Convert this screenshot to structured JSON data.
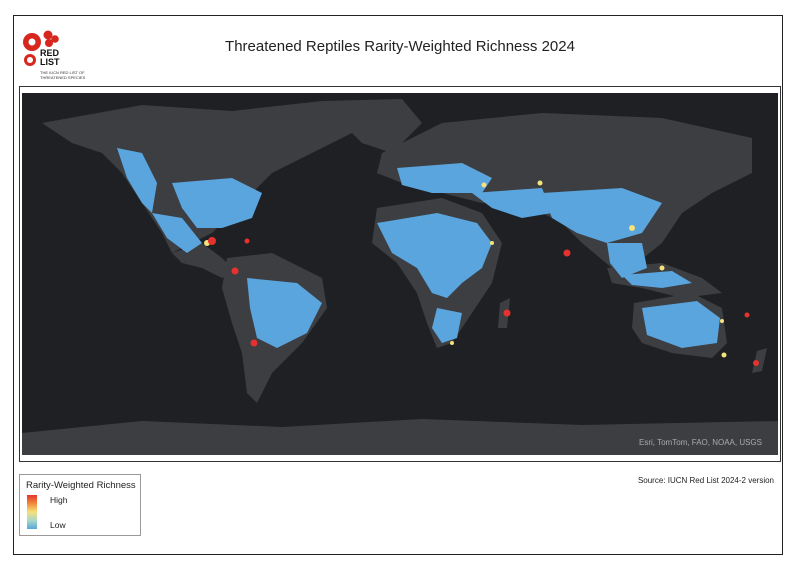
{
  "title": "Threatened Reptiles Rarity-Weighted Richness 2024",
  "logo": {
    "wordmark_line1": "RED",
    "wordmark_line2": "LIST",
    "caption": "THE IUCN RED LIST OF THREATENED SPECIES",
    "color": "#d7261e"
  },
  "map": {
    "attribution": "Esri, TomTom, FAO, NOAA, USGS",
    "ocean_color": "#1e2023",
    "land_color": "#3c3e42",
    "low_color": "#5aa5dd",
    "mid_color": "#f4e27a",
    "high_color": "#e6322e"
  },
  "source": "Source: IUCN Red List 2024-2 version",
  "legend": {
    "title": "Rarity-Weighted Richness",
    "high_label": "High",
    "low_label": "Low"
  }
}
